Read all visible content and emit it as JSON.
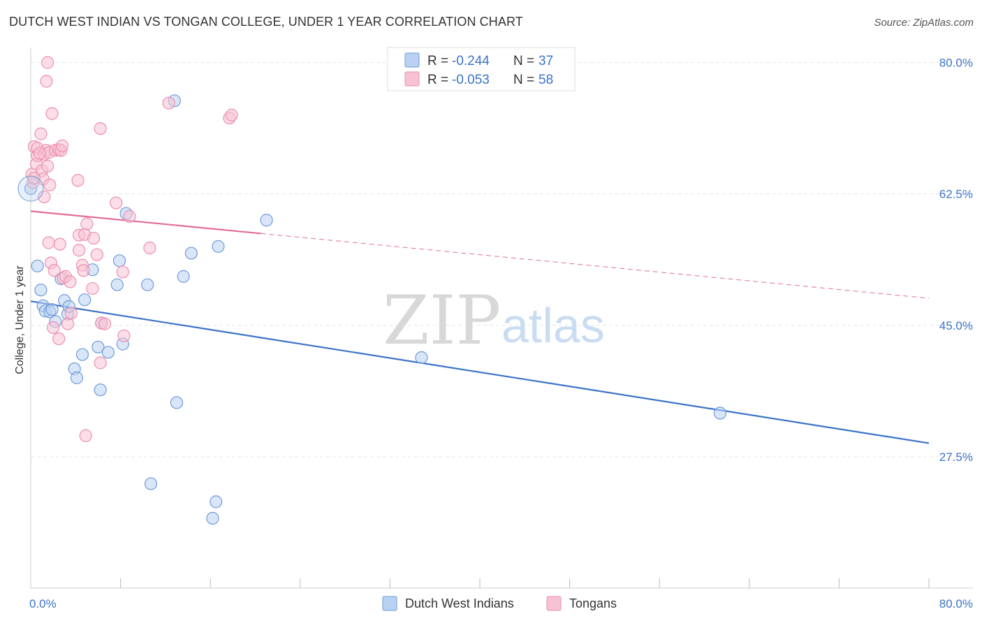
{
  "title": "DUTCH WEST INDIAN VS TONGAN COLLEGE, UNDER 1 YEAR CORRELATION CHART",
  "source": "Source: ZipAtlas.com",
  "watermark": {
    "zip": "ZIP",
    "atlas": "atlas"
  },
  "colors": {
    "blue": "#3b73c9",
    "blue_fill": "#b9d1f2",
    "blue_stroke": "#6f9bd8",
    "pink": "#e36d97",
    "pink_fill": "#f7c2d3",
    "pink_stroke": "#ec8fae",
    "grid": "#e6e6e6"
  },
  "legend": {
    "rows": [
      {
        "r_label": "R = ",
        "r_value": "-0.244",
        "n_label": "N = ",
        "n_value": "37"
      },
      {
        "r_label": "R = ",
        "r_value": "-0.053",
        "n_label": "N = ",
        "n_value": "58"
      }
    ]
  },
  "chart_data": {
    "type": "scatter",
    "title": "DUTCH WEST INDIAN VS TONGAN COLLEGE, UNDER 1 YEAR CORRELATION CHART",
    "xlabel": "",
    "ylabel": "College, Under 1 year",
    "xlim": [
      0,
      80
    ],
    "ylim": [
      10,
      82
    ],
    "x_tick_labels": [
      "0.0%",
      "80.0%"
    ],
    "y_ticks": [
      27.5,
      45.0,
      62.5,
      80.0
    ],
    "y_tick_labels": [
      "27.5%",
      "45.0%",
      "62.5%",
      "80.0%"
    ],
    "series": [
      {
        "name": "Dutch West Indians",
        "color": "blue",
        "trend": {
          "x": [
            0,
            80
          ],
          "y": [
            48.2,
            29.3
          ],
          "dashed_from": null
        },
        "points": [
          [
            0.0,
            63.2
          ],
          [
            0.6,
            52.9
          ],
          [
            0.9,
            49.7
          ],
          [
            1.1,
            47.6
          ],
          [
            1.3,
            46.9
          ],
          [
            1.7,
            46.8
          ],
          [
            1.9,
            47.1
          ],
          [
            2.2,
            45.5
          ],
          [
            2.7,
            51.2
          ],
          [
            3.0,
            48.3
          ],
          [
            3.3,
            46.5
          ],
          [
            3.4,
            47.5
          ],
          [
            3.9,
            39.2
          ],
          [
            4.1,
            38.0
          ],
          [
            4.6,
            41.1
          ],
          [
            4.8,
            48.4
          ],
          [
            5.5,
            52.4
          ],
          [
            6.0,
            42.1
          ],
          [
            6.2,
            36.4
          ],
          [
            6.3,
            45.3
          ],
          [
            6.9,
            41.4
          ],
          [
            7.7,
            50.4
          ],
          [
            7.9,
            53.6
          ],
          [
            8.2,
            42.5
          ],
          [
            8.5,
            59.9
          ],
          [
            10.4,
            50.4
          ],
          [
            10.7,
            23.9
          ],
          [
            12.8,
            74.9
          ],
          [
            13.0,
            34.7
          ],
          [
            13.6,
            51.5
          ],
          [
            14.3,
            54.6
          ],
          [
            16.2,
            19.3
          ],
          [
            16.5,
            21.5
          ],
          [
            16.7,
            55.5
          ],
          [
            21.0,
            59.0
          ],
          [
            34.8,
            40.7
          ],
          [
            61.4,
            33.3
          ]
        ]
      },
      {
        "name": "Tongans",
        "color": "pink",
        "trend": {
          "x": [
            0,
            80
          ],
          "y": [
            60.2,
            48.6
          ],
          "dashed_from": 20.5
        },
        "points": [
          [
            0.1,
            65.1
          ],
          [
            0.2,
            64.0
          ],
          [
            0.3,
            68.8
          ],
          [
            0.5,
            66.5
          ],
          [
            0.6,
            67.6
          ],
          [
            0.6,
            68.6
          ],
          [
            0.9,
            70.5
          ],
          [
            1.0,
            65.6
          ],
          [
            1.1,
            64.5
          ],
          [
            1.2,
            62.1
          ],
          [
            1.2,
            67.8
          ],
          [
            1.4,
            77.5
          ],
          [
            1.4,
            68.3
          ],
          [
            1.5,
            80.0
          ],
          [
            1.5,
            66.2
          ],
          [
            1.6,
            68.0
          ],
          [
            1.6,
            56.0
          ],
          [
            1.7,
            63.7
          ],
          [
            1.8,
            53.3
          ],
          [
            1.9,
            73.2
          ],
          [
            2.0,
            44.7
          ],
          [
            2.1,
            52.3
          ],
          [
            2.2,
            68.3
          ],
          [
            2.5,
            68.4
          ],
          [
            2.5,
            43.2
          ],
          [
            2.6,
            55.8
          ],
          [
            2.7,
            68.3
          ],
          [
            2.8,
            68.9
          ],
          [
            2.9,
            51.3
          ],
          [
            3.1,
            51.5
          ],
          [
            3.3,
            45.2
          ],
          [
            3.5,
            50.8
          ],
          [
            3.6,
            46.6
          ],
          [
            4.2,
            64.3
          ],
          [
            4.3,
            55.0
          ],
          [
            4.3,
            57.0
          ],
          [
            4.6,
            53.0
          ],
          [
            4.7,
            52.3
          ],
          [
            4.8,
            57.1
          ],
          [
            4.9,
            30.3
          ],
          [
            5.0,
            58.5
          ],
          [
            5.5,
            49.9
          ],
          [
            5.6,
            56.6
          ],
          [
            5.9,
            54.4
          ],
          [
            6.2,
            40.0
          ],
          [
            6.2,
            71.2
          ],
          [
            6.3,
            45.3
          ],
          [
            6.6,
            45.2
          ],
          [
            7.6,
            61.3
          ],
          [
            8.2,
            52.1
          ],
          [
            8.3,
            43.6
          ],
          [
            8.8,
            59.5
          ],
          [
            10.6,
            55.3
          ],
          [
            12.3,
            74.6
          ],
          [
            17.7,
            72.6
          ],
          [
            17.9,
            73.0
          ],
          [
            0.3,
            64.6
          ],
          [
            0.8,
            67.9
          ]
        ]
      }
    ]
  },
  "bottom_legend": [
    {
      "label": "Dutch West Indians",
      "color": "blue"
    },
    {
      "label": "Tongans",
      "color": "pink"
    }
  ]
}
